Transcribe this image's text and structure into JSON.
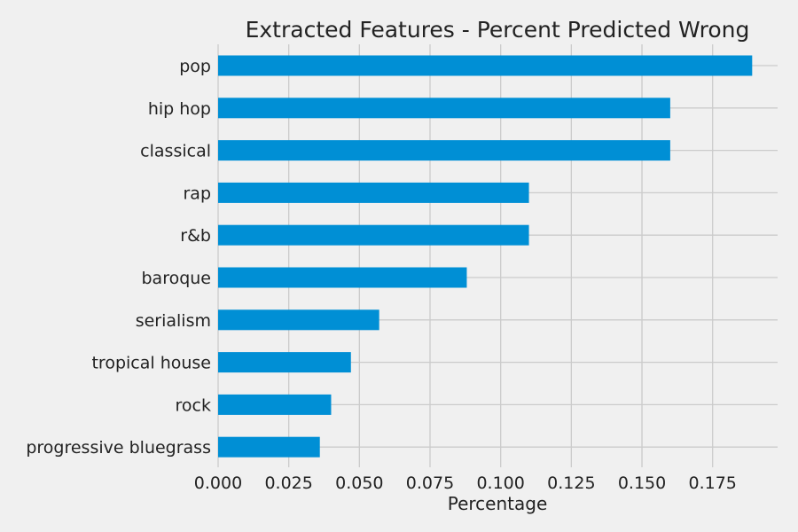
{
  "chart_data": {
    "type": "bar",
    "orientation": "horizontal",
    "title": "Extracted Features - Percent Predicted Wrong",
    "xlabel": "Percentage",
    "ylabel": "",
    "categories": [
      "pop",
      "hip hop",
      "classical",
      "rap",
      "r&b",
      "baroque",
      "serialism",
      "tropical house",
      "rock",
      "progressive bluegrass"
    ],
    "values": [
      0.189,
      0.16,
      0.16,
      0.11,
      0.11,
      0.088,
      0.057,
      0.047,
      0.04,
      0.036
    ],
    "xticks": [
      "0.000",
      "0.025",
      "0.050",
      "0.075",
      "0.100",
      "0.125",
      "0.150",
      "0.175"
    ],
    "xlim": [
      0,
      0.198
    ],
    "grid": true,
    "colors": {
      "bar": "#008fd5",
      "background": "#f0f0f0",
      "grid": "#cbcbcb"
    }
  }
}
